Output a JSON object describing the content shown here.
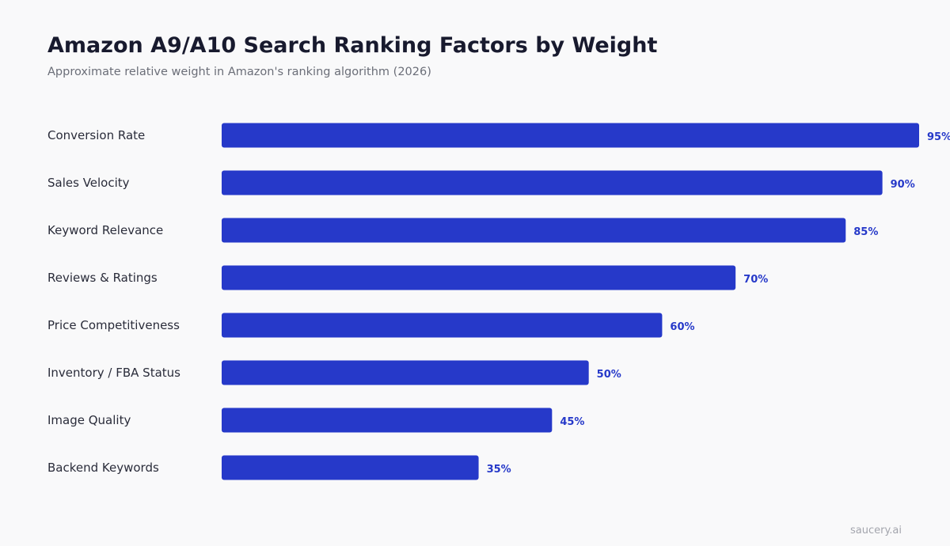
{
  "chart_data": {
    "type": "bar",
    "orientation": "horizontal",
    "title": "Amazon A9/A10 Search Ranking Factors by Weight",
    "subtitle": "Approximate relative weight in Amazon's ranking algorithm (2026)",
    "categories": [
      "Conversion Rate",
      "Sales Velocity",
      "Keyword Relevance",
      "Reviews & Ratings",
      "Price Competitiveness",
      "Inventory / FBA Status",
      "Image Quality",
      "Backend Keywords"
    ],
    "values": [
      95,
      90,
      85,
      70,
      60,
      50,
      45,
      35
    ],
    "value_labels": [
      "95%",
      "90%",
      "85%",
      "70%",
      "60%",
      "50%",
      "45%",
      "35%"
    ],
    "xlim": [
      0,
      95
    ],
    "grid": false,
    "legend": "none",
    "bar_color": "#2639c9",
    "value_label_color": "#2639c9"
  },
  "watermark": "saucery.ai"
}
